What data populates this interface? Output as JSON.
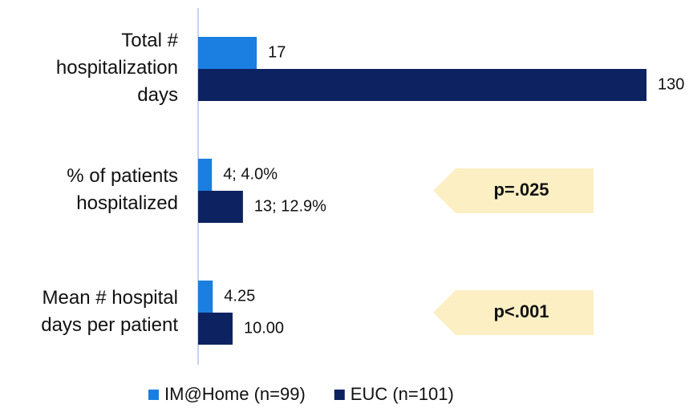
{
  "chart_data": {
    "type": "barh",
    "categories": [
      "Total #\nhospitalization\ndays",
      "% of patients\nhospitalized",
      "Mean # hospital\ndays per patient"
    ],
    "series": [
      {
        "name": "IM@Home (n=99)",
        "color": "#1a7fe0",
        "values": [
          17,
          4,
          4.25
        ],
        "value_labels": [
          "17",
          "4; 4.0%",
          "4.25"
        ]
      },
      {
        "name": "EUC (n=101)",
        "color": "#0d2260",
        "values": [
          130,
          13,
          10
        ],
        "value_labels": [
          "130",
          "13; 12.9%",
          "10.00"
        ]
      }
    ],
    "xlim": [
      0,
      130
    ],
    "annotations": [
      "p=.025",
      "p<.001"
    ],
    "legend": "bottom"
  }
}
